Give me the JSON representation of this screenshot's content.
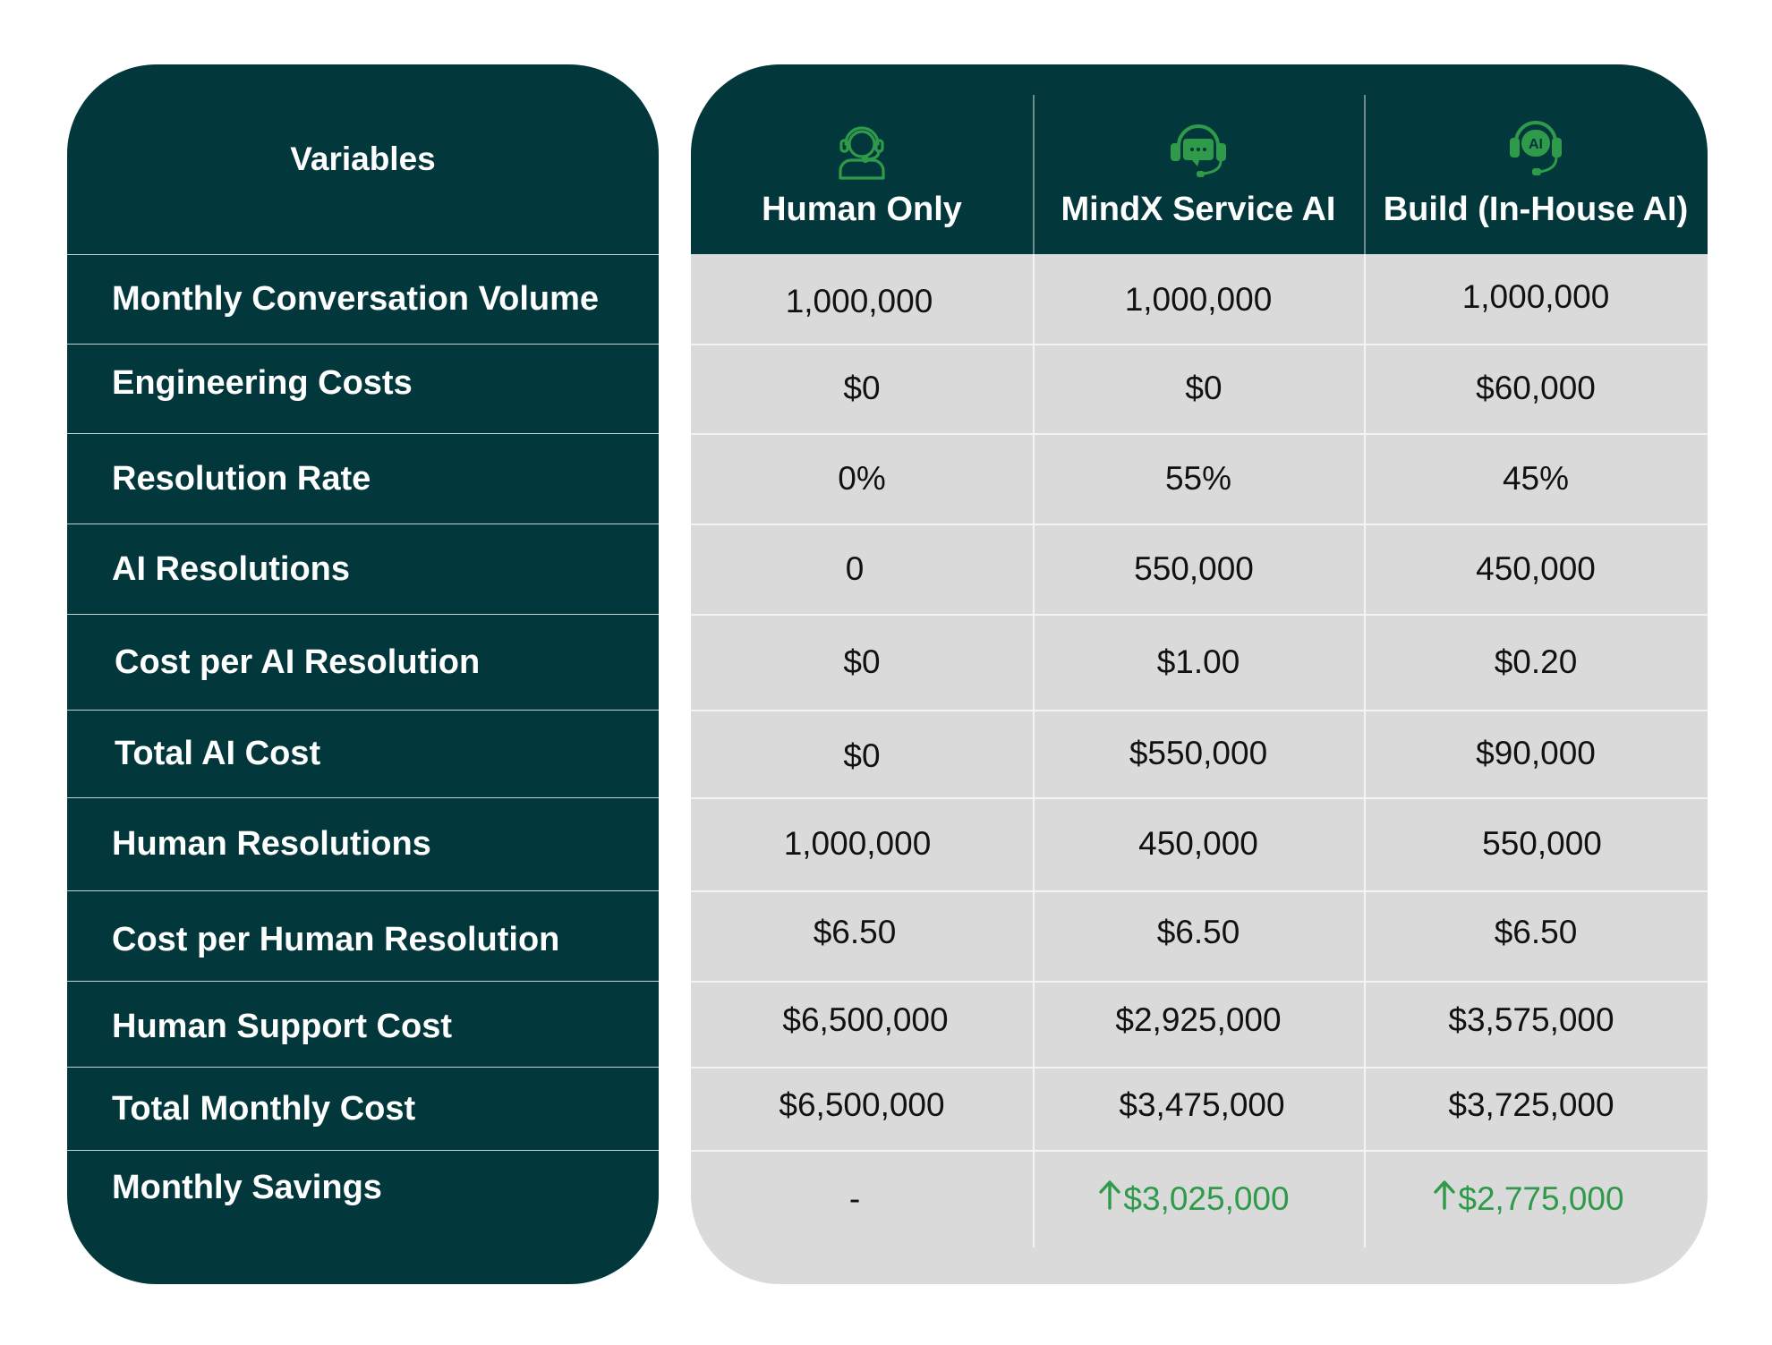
{
  "table": {
    "variables_header": "Variables",
    "columns": [
      {
        "label": "Human Only",
        "icon": "human-agent-icon"
      },
      {
        "label": "MindX Service AI",
        "icon": "chat-headset-icon"
      },
      {
        "label": "Build (In-House AI)",
        "icon": "ai-headset-icon"
      }
    ],
    "rows": [
      {
        "label": "Monthly Conversation Volume",
        "values": [
          "1,000,000",
          "1,000,000",
          "1,000,000"
        ]
      },
      {
        "label": "Engineering Costs",
        "values": [
          "$0",
          "$0",
          "$60,000"
        ]
      },
      {
        "label": "Resolution Rate",
        "values": [
          "0%",
          "55%",
          "45%"
        ]
      },
      {
        "label": "AI Resolutions",
        "values": [
          "0",
          "550,000",
          "450,000"
        ]
      },
      {
        "label": "Cost per AI Resolution",
        "values": [
          "$0",
          "$1.00",
          "$0.20"
        ]
      },
      {
        "label": "Total AI Cost",
        "values": [
          "$0",
          "$550,000",
          "$90,000"
        ]
      },
      {
        "label": "Human Resolutions",
        "values": [
          "1,000,000",
          "450,000",
          "550,000"
        ]
      },
      {
        "label": "Cost per Human Resolution",
        "values": [
          "$6.50",
          "$6.50",
          "$6.50"
        ]
      },
      {
        "label": "Human Support Cost",
        "values": [
          "$6,500,000",
          "$2,925,000",
          "$3,575,000"
        ]
      },
      {
        "label": "Total Monthly Cost",
        "values": [
          "$6,500,000",
          "$3,475,000",
          "$3,725,000"
        ]
      },
      {
        "label": "Monthly Savings",
        "values": [
          "-",
          "$3,025,000",
          "$2,775,000"
        ]
      }
    ]
  },
  "colors": {
    "dark_teal": "#02383b",
    "body_gray": "#dadada",
    "accent_green": "#2f9a49"
  }
}
